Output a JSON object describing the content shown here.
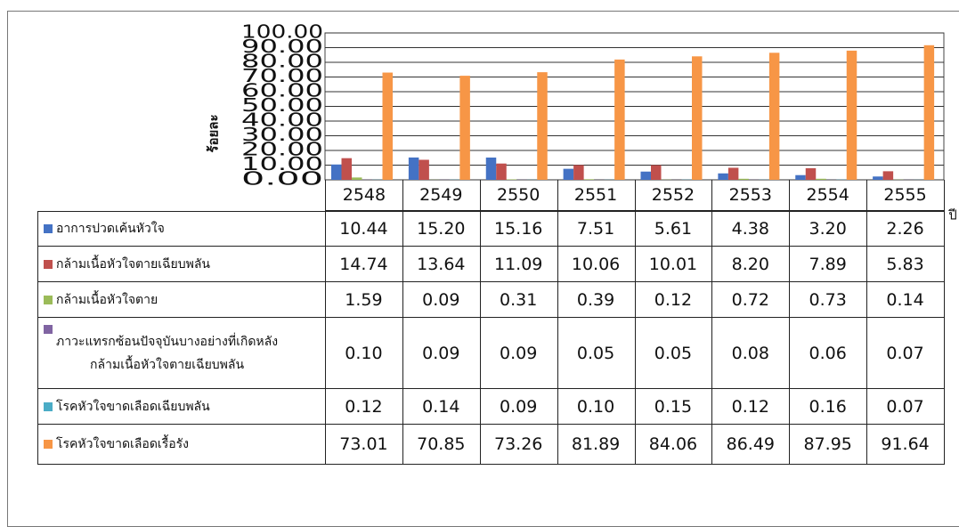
{
  "chart_data": {
    "type": "bar",
    "y_label": "ร้อยละ",
    "x_label": "ปี",
    "categories": [
      "2548",
      "2549",
      "2550",
      "2551",
      "2552",
      "2553",
      "2554",
      "2555"
    ],
    "series": [
      {
        "name": "อาการปวดเค้นหัวใจ",
        "color": "#4472c4",
        "values": [
          10.44,
          15.2,
          15.16,
          7.51,
          5.61,
          4.38,
          3.2,
          2.26
        ],
        "value_labels": [
          "10.44",
          "15.20",
          "15.16",
          "7.51",
          "5.61",
          "4.38",
          "3.20",
          "2.26"
        ]
      },
      {
        "name": "กล้ามเนื้อหัวใจตายเฉียบพลัน",
        "color": "#c0504d",
        "values": [
          14.74,
          13.64,
          11.09,
          10.06,
          10.01,
          8.2,
          7.89,
          5.83
        ],
        "value_labels": [
          "14.74",
          "13.64",
          "11.09",
          "10.06",
          "10.01",
          "8.20",
          "7.89",
          "5.83"
        ]
      },
      {
        "name": "กล้ามเนื้อหัวใจตาย",
        "color": "#9bbb59",
        "values": [
          1.59,
          0.09,
          0.31,
          0.39,
          0.12,
          0.72,
          0.73,
          0.14
        ],
        "value_labels": [
          "1.59",
          "0.09",
          "0.31",
          "0.39",
          "0.12",
          "0.72",
          "0.73",
          "0.14"
        ]
      },
      {
        "name": "ภาวะแทรกซ้อนปัจจุบันบางอย่างที่เกิดหลัง\nกล้ามเนื้อหัวใจตายเฉียบพลัน",
        "color": "#8064a2",
        "values": [
          0.1,
          0.09,
          0.09,
          0.05,
          0.05,
          0.08,
          0.06,
          0.07
        ],
        "value_labels": [
          "0.10",
          "0.09",
          "0.09",
          "0.05",
          "0.05",
          "0.08",
          "0.06",
          "0.07"
        ]
      },
      {
        "name": "โรคหัวใจขาดเลือดเฉียบพลัน",
        "color": "#4bacc6",
        "values": [
          0.12,
          0.14,
          0.09,
          0.1,
          0.15,
          0.12,
          0.16,
          0.07
        ],
        "value_labels": [
          "0.12",
          "0.14",
          "0.09",
          "0.10",
          "0.15",
          "0.12",
          "0.16",
          "0.07"
        ]
      },
      {
        "name": "โรคหัวใจขาดเลือดเรื้อรัง",
        "color": "#f79646",
        "values": [
          73.01,
          70.85,
          73.26,
          81.89,
          84.06,
          86.49,
          87.95,
          91.64
        ],
        "value_labels": [
          "73.01",
          "70.85",
          "73.26",
          "81.89",
          "84.06",
          "86.49",
          "87.95",
          "91.64"
        ]
      }
    ],
    "ylim": [
      0,
      100
    ],
    "yticks": [
      {
        "value": 0,
        "label": "0.00"
      },
      {
        "value": 10,
        "label": "10.00"
      },
      {
        "value": 20,
        "label": "20.00"
      },
      {
        "value": 30,
        "label": "30.00"
      },
      {
        "value": 40,
        "label": "40.00"
      },
      {
        "value": 50,
        "label": "50.00"
      },
      {
        "value": 60,
        "label": "60.00"
      },
      {
        "value": 70,
        "label": "70.00"
      },
      {
        "value": 80,
        "label": "80.00"
      },
      {
        "value": 90,
        "label": "90.00"
      },
      {
        "value": 100,
        "label": "100.00"
      }
    ],
    "grid": true
  }
}
